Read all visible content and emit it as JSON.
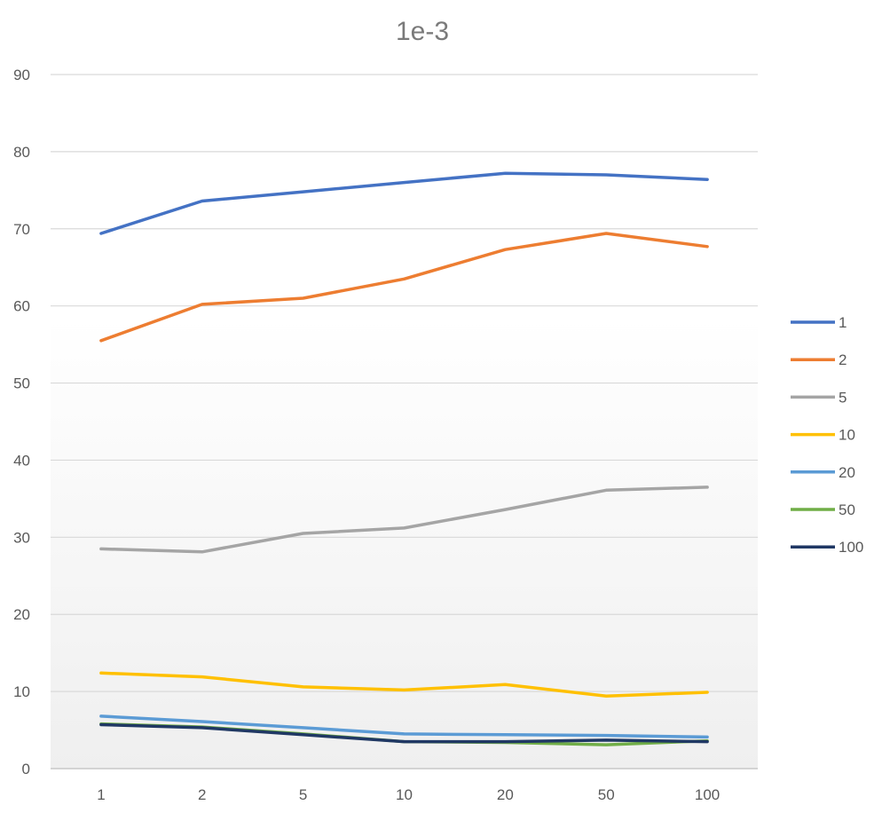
{
  "chart_data": {
    "type": "line",
    "title": "1e-3",
    "xlabel": "",
    "ylabel": "",
    "categories": [
      "1",
      "2",
      "5",
      "10",
      "20",
      "50",
      "100"
    ],
    "ylim": [
      0,
      90
    ],
    "yticks": [
      0,
      10,
      20,
      30,
      40,
      50,
      60,
      70,
      80,
      90
    ],
    "grid": true,
    "legend_position": "right",
    "series": [
      {
        "name": "1",
        "color": "#4472c4",
        "values": [
          69.4,
          73.6,
          74.8,
          76.0,
          77.2,
          77.0,
          76.4
        ]
      },
      {
        "name": "2",
        "color": "#ed7d31",
        "values": [
          55.5,
          60.2,
          61.0,
          63.5,
          67.3,
          69.4,
          67.7
        ]
      },
      {
        "name": "5",
        "color": "#a5a5a5",
        "values": [
          28.5,
          28.1,
          30.5,
          31.2,
          33.6,
          36.1,
          36.5
        ]
      },
      {
        "name": "10",
        "color": "#ffc000",
        "values": [
          12.4,
          11.9,
          10.6,
          10.2,
          10.9,
          9.4,
          9.9
        ]
      },
      {
        "name": "20",
        "color": "#5b9bd5",
        "values": [
          6.8,
          6.1,
          5.3,
          4.5,
          4.4,
          4.3,
          4.1
        ]
      },
      {
        "name": "50",
        "color": "#70ad47",
        "values": [
          5.8,
          5.4,
          4.5,
          3.5,
          3.4,
          3.1,
          3.6
        ]
      },
      {
        "name": "100",
        "color": "#203864",
        "values": [
          5.7,
          5.3,
          4.4,
          3.5,
          3.5,
          3.7,
          3.5
        ]
      }
    ]
  }
}
